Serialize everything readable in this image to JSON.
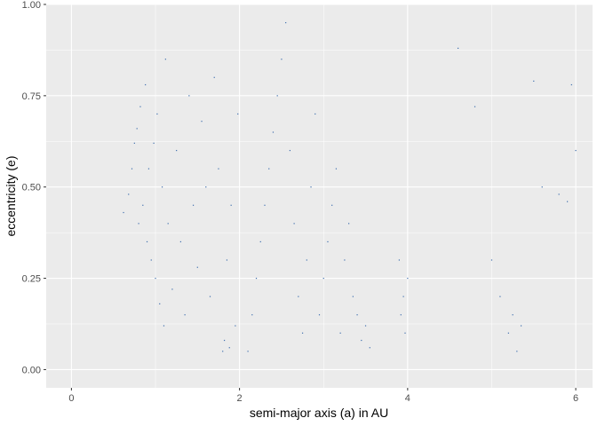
{
  "chart_data": {
    "type": "scatter",
    "title": "",
    "xlabel": "semi-major axis (a) in AU",
    "ylabel": "eccentricity (e)",
    "xlim": [
      -0.3,
      6.2
    ],
    "ylim": [
      -0.05,
      1.0
    ],
    "x_ticks": [
      0,
      2,
      4,
      6
    ],
    "x_tick_labels": [
      "0",
      "2",
      "4",
      "6"
    ],
    "y_ticks": [
      0.0,
      0.25,
      0.5,
      0.75,
      1.0
    ],
    "y_tick_labels": [
      "0.00",
      "0.25",
      "0.50",
      "0.75",
      "1.00"
    ],
    "grid": true,
    "point_color": "#3f6fae",
    "panel_background": "#ebebeb",
    "grid_color": "#ffffff",
    "series": [
      {
        "points": [
          [
            0.62,
            0.43
          ],
          [
            0.68,
            0.48
          ],
          [
            0.72,
            0.55
          ],
          [
            0.75,
            0.62
          ],
          [
            0.78,
            0.66
          ],
          [
            0.8,
            0.4
          ],
          [
            0.82,
            0.72
          ],
          [
            0.85,
            0.45
          ],
          [
            0.88,
            0.78
          ],
          [
            0.9,
            0.35
          ],
          [
            0.92,
            0.55
          ],
          [
            0.95,
            0.3
          ],
          [
            0.98,
            0.62
          ],
          [
            1.0,
            0.25
          ],
          [
            1.02,
            0.7
          ],
          [
            1.05,
            0.18
          ],
          [
            1.08,
            0.5
          ],
          [
            1.1,
            0.12
          ],
          [
            1.12,
            0.85
          ],
          [
            1.15,
            0.4
          ],
          [
            1.2,
            0.22
          ],
          [
            1.25,
            0.6
          ],
          [
            1.3,
            0.35
          ],
          [
            1.35,
            0.15
          ],
          [
            1.4,
            0.75
          ],
          [
            1.45,
            0.45
          ],
          [
            1.5,
            0.28
          ],
          [
            1.55,
            0.68
          ],
          [
            1.6,
            0.5
          ],
          [
            1.65,
            0.2
          ],
          [
            1.7,
            0.8
          ],
          [
            1.75,
            0.55
          ],
          [
            1.8,
            0.05
          ],
          [
            1.82,
            0.08
          ],
          [
            1.85,
            0.3
          ],
          [
            1.88,
            0.06
          ],
          [
            1.9,
            0.45
          ],
          [
            1.95,
            0.12
          ],
          [
            1.98,
            0.7
          ],
          [
            2.1,
            0.05
          ],
          [
            2.15,
            0.15
          ],
          [
            2.2,
            0.25
          ],
          [
            2.25,
            0.35
          ],
          [
            2.3,
            0.45
          ],
          [
            2.35,
            0.55
          ],
          [
            2.4,
            0.65
          ],
          [
            2.45,
            0.75
          ],
          [
            2.5,
            0.85
          ],
          [
            2.55,
            0.95
          ],
          [
            2.6,
            0.6
          ],
          [
            2.65,
            0.4
          ],
          [
            2.7,
            0.2
          ],
          [
            2.75,
            0.1
          ],
          [
            2.8,
            0.3
          ],
          [
            2.85,
            0.5
          ],
          [
            2.9,
            0.7
          ],
          [
            2.95,
            0.15
          ],
          [
            3.0,
            0.25
          ],
          [
            3.05,
            0.35
          ],
          [
            3.1,
            0.45
          ],
          [
            3.15,
            0.55
          ],
          [
            3.2,
            0.1
          ],
          [
            3.25,
            0.3
          ],
          [
            3.3,
            0.4
          ],
          [
            3.35,
            0.2
          ],
          [
            3.4,
            0.15
          ],
          [
            3.45,
            0.08
          ],
          [
            3.5,
            0.12
          ],
          [
            3.55,
            0.06
          ],
          [
            3.9,
            0.3
          ],
          [
            3.95,
            0.2
          ],
          [
            3.97,
            0.1
          ],
          [
            4.0,
            0.25
          ],
          [
            3.92,
            0.15
          ],
          [
            4.6,
            0.88
          ],
          [
            4.8,
            0.72
          ],
          [
            5.0,
            0.3
          ],
          [
            5.1,
            0.2
          ],
          [
            5.2,
            0.1
          ],
          [
            5.25,
            0.15
          ],
          [
            5.3,
            0.05
          ],
          [
            5.35,
            0.12
          ],
          [
            5.5,
            0.79
          ],
          [
            5.6,
            0.5
          ],
          [
            5.8,
            0.48
          ],
          [
            5.9,
            0.46
          ],
          [
            6.0,
            0.6
          ],
          [
            5.95,
            0.78
          ]
        ]
      }
    ]
  }
}
